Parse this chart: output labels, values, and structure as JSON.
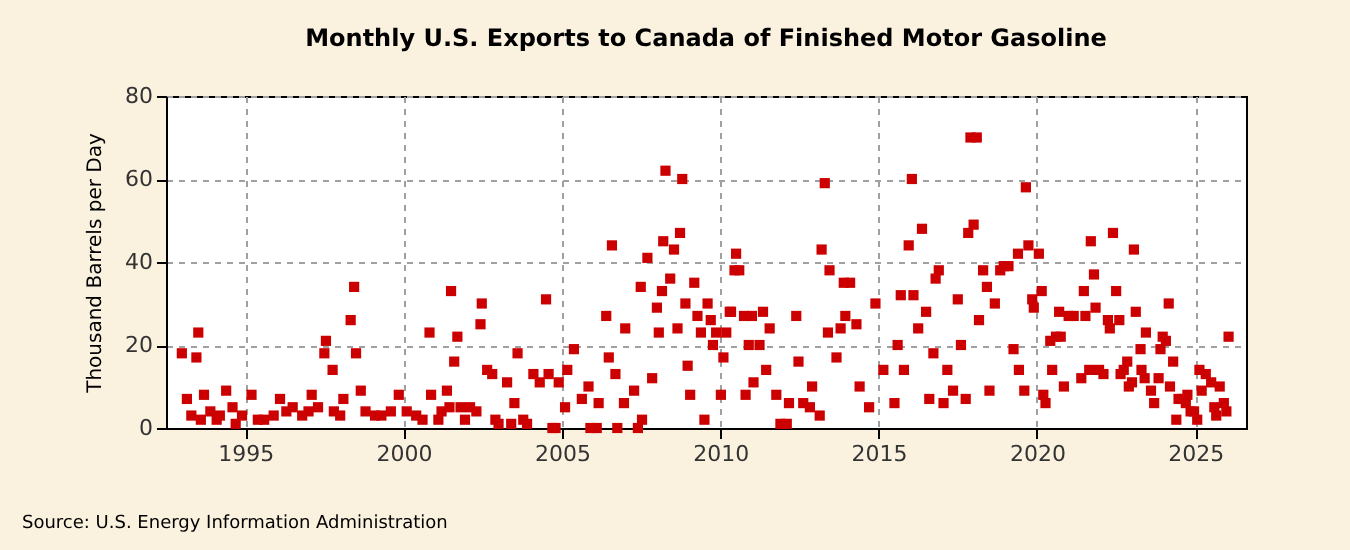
{
  "chart_data": {
    "type": "scatter",
    "title": "Monthly U.S. Exports to Canada of Finished Motor Gasoline",
    "ylabel": "Thousand Barrels per Day",
    "annotations": [
      "Source: U.S. Energy Information Administration"
    ],
    "xlim": [
      1992.5,
      2026.6
    ],
    "xticks": [
      1995,
      2000,
      2005,
      2010,
      2015,
      2020,
      2025
    ],
    "ylim": [
      0,
      80
    ],
    "yticks": [
      0,
      20,
      40,
      60,
      80
    ],
    "grid": true,
    "marker": "square",
    "series": [
      {
        "color": "#cc0000",
        "x": [
          1993.0,
          1993.16,
          1993.3,
          1993.46,
          1993.52,
          1993.6,
          1993.7,
          1993.9,
          1994.1,
          1994.2,
          1994.4,
          1994.6,
          1994.7,
          1994.9,
          1995.2,
          1995.4,
          1995.6,
          1995.9,
          1996.1,
          1996.3,
          1996.5,
          1996.8,
          1997.0,
          1997.1,
          1997.3,
          1997.5,
          1997.55,
          1997.76,
          1997.8,
          1998.0,
          1998.1,
          1998.33,
          1998.44,
          1998.5,
          1998.65,
          1998.8,
          1999.1,
          1999.3,
          1999.6,
          1999.85,
          2000.1,
          2000.4,
          2000.6,
          2000.82,
          2000.87,
          2001.1,
          2001.2,
          2001.37,
          2001.45,
          2001.5,
          2001.6,
          2001.7,
          2001.8,
          2001.94,
          2002.1,
          2002.3,
          2002.43,
          2002.47,
          2002.64,
          2002.8,
          2002.9,
          2003.0,
          2003.27,
          2003.4,
          2003.5,
          2003.6,
          2003.78,
          2003.9,
          2004.1,
          2004.3,
          2004.5,
          2004.58,
          2004.7,
          2004.8,
          2004.9,
          2005.1,
          2005.17,
          2005.38,
          2005.63,
          2005.84,
          2005.9,
          2006.1,
          2006.16,
          2006.4,
          2006.48,
          2006.58,
          2006.69,
          2006.75,
          2006.96,
          2007.0,
          2007.28,
          2007.4,
          2007.49,
          2007.53,
          2007.7,
          2007.85,
          2008.0,
          2008.06,
          2008.16,
          2008.2,
          2008.27,
          2008.42,
          2008.54,
          2008.65,
          2008.73,
          2008.8,
          2008.9,
          2008.97,
          2009.05,
          2009.18,
          2009.28,
          2009.39,
          2009.5,
          2009.6,
          2009.7,
          2009.77,
          2009.87,
          2010.02,
          2010.1,
          2010.19,
          2010.3,
          2010.34,
          2010.45,
          2010.5,
          2010.6,
          2010.75,
          2010.8,
          2010.9,
          2011.0,
          2011.05,
          2011.24,
          2011.35,
          2011.45,
          2011.56,
          2011.77,
          2011.9,
          2012.1,
          2012.17,
          2012.4,
          2012.47,
          2012.62,
          2012.83,
          2012.9,
          2013.14,
          2013.2,
          2013.3,
          2013.4,
          2013.45,
          2013.67,
          2013.8,
          2013.9,
          2013.95,
          2014.1,
          2014.3,
          2014.4,
          2014.7,
          2014.9,
          2015.15,
          2015.5,
          2015.6,
          2015.7,
          2015.8,
          2015.95,
          2016.05,
          2016.1,
          2016.25,
          2016.37,
          2016.5,
          2016.6,
          2016.73,
          2016.8,
          2016.9,
          2017.05,
          2017.17,
          2017.35,
          2017.5,
          2017.6,
          2017.75,
          2017.83,
          2017.9,
          2018.0,
          2018.1,
          2018.17,
          2018.3,
          2018.42,
          2018.5,
          2018.67,
          2018.84,
          2018.95,
          2019.1,
          2019.26,
          2019.4,
          2019.43,
          2019.6,
          2019.65,
          2019.73,
          2019.85,
          2019.9,
          2020.06,
          2020.15,
          2020.2,
          2020.27,
          2020.42,
          2020.48,
          2020.6,
          2020.7,
          2020.75,
          2020.85,
          2021.0,
          2021.16,
          2021.4,
          2021.48,
          2021.53,
          2021.65,
          2021.7,
          2021.8,
          2021.85,
          2021.96,
          2022.1,
          2022.24,
          2022.3,
          2022.4,
          2022.5,
          2022.6,
          2022.64,
          2022.74,
          2022.85,
          2022.9,
          2023.0,
          2023.06,
          2023.12,
          2023.27,
          2023.3,
          2023.4,
          2023.44,
          2023.6,
          2023.7,
          2023.84,
          2023.9,
          2023.97,
          2024.07,
          2024.16,
          2024.2,
          2024.3,
          2024.4,
          2024.47,
          2024.6,
          2024.7,
          2024.75,
          2024.85,
          2024.96,
          2025.06,
          2025.13,
          2025.2,
          2025.33,
          2025.5,
          2025.6,
          2025.66,
          2025.77,
          2025.9,
          2025.98,
          2026.05
        ],
        "values": [
          18,
          7,
          3,
          17,
          23,
          2,
          8,
          4,
          2,
          3,
          9,
          5,
          1,
          3,
          8,
          2,
          2,
          3,
          7,
          4,
          5,
          3,
          4,
          8,
          5,
          18,
          21,
          14,
          4,
          3,
          7,
          26,
          34,
          18,
          9,
          4,
          3,
          3,
          4,
          8,
          4,
          3,
          2,
          23,
          8,
          2,
          4,
          9,
          5,
          33,
          16,
          22,
          5,
          2,
          5,
          4,
          25,
          30,
          14,
          13,
          2,
          1,
          11,
          1,
          6,
          18,
          2,
          1,
          13,
          11,
          31,
          13,
          0,
          0,
          11,
          5,
          14,
          19,
          7,
          10,
          0,
          0,
          6,
          27,
          17,
          44,
          13,
          0,
          6,
          24,
          9,
          0,
          34,
          2,
          41,
          12,
          29,
          23,
          33,
          45,
          62,
          36,
          43,
          24,
          47,
          60,
          30,
          15,
          8,
          35,
          27,
          23,
          2,
          30,
          26,
          20,
          23,
          8,
          17,
          23,
          28,
          28,
          38,
          42,
          38,
          27,
          8,
          20,
          27,
          11,
          20,
          28,
          14,
          24,
          8,
          1,
          1,
          6,
          27,
          16,
          6,
          5,
          10,
          3,
          43,
          59,
          23,
          38,
          17,
          24,
          35,
          27,
          35,
          25,
          10,
          5,
          30,
          14,
          6,
          20,
          32,
          14,
          44,
          60,
          32,
          24,
          48,
          28,
          7,
          18,
          36,
          38,
          6,
          14,
          9,
          31,
          20,
          7,
          47,
          70,
          49,
          70,
          26,
          38,
          34,
          9,
          30,
          38,
          39,
          39,
          19,
          42,
          14,
          9,
          58,
          44,
          31,
          29,
          42,
          33,
          8,
          6,
          21,
          14,
          22,
          28,
          22,
          10,
          27,
          27,
          12,
          33,
          27,
          14,
          45,
          37,
          29,
          14,
          13,
          26,
          24,
          47,
          33,
          26,
          13,
          14,
          16,
          10,
          11,
          43,
          28,
          19,
          14,
          12,
          23,
          9,
          6,
          12,
          19,
          22,
          21,
          30,
          10,
          16,
          2,
          7,
          7,
          6,
          8,
          4,
          4,
          2,
          14,
          9,
          13,
          11,
          5,
          3,
          10,
          6,
          4,
          22
        ]
      }
    ]
  }
}
